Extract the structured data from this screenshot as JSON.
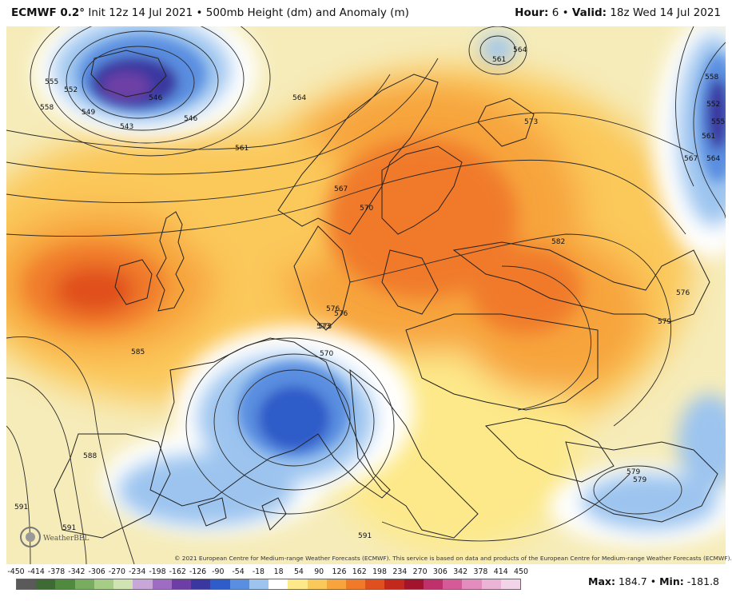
{
  "header": {
    "model": "ECMWF 0.2°",
    "init": "Init 12z 14 Jul 2021",
    "bullet": "•",
    "field": "500mb Height (dm) and Anomaly (m)",
    "hour_label": "Hour:",
    "hour_value": "6",
    "valid_label": "Valid:",
    "valid_value": "18z Wed 14 Jul 2021"
  },
  "colorbar": {
    "ticks": [
      "-450",
      "-414",
      "-378",
      "-342",
      "-306",
      "-270",
      "-234",
      "-198",
      "-162",
      "-126",
      "-90",
      "-54",
      "-18",
      "18",
      "54",
      "90",
      "126",
      "162",
      "198",
      "234",
      "270",
      "306",
      "342",
      "378",
      "414",
      "450"
    ],
    "colors": [
      "#5a5a5a",
      "#3e6b33",
      "#4f8a3f",
      "#78ad5f",
      "#a6cd86",
      "#cfe3b3",
      "#c9a6d8",
      "#9e6cc2",
      "#6d3fa6",
      "#3a38a0",
      "#2e5cc8",
      "#5a8ee0",
      "#9cc4ef",
      "#ffffff",
      "#fde98a",
      "#fbc85a",
      "#f7a43c",
      "#f07a2a",
      "#e0501f",
      "#c3281c",
      "#a3142c",
      "#c0306a",
      "#d65a98",
      "#e48cbd",
      "#ebb4d6",
      "#f2d4e8"
    ]
  },
  "stats": {
    "max_label": "Max:",
    "max_value": "184.7",
    "min_label": "Min:",
    "min_value": "-181.8"
  },
  "copyright": "© 2021 European Centre for Medium-range Weather Forecasts (ECMWF). This service is based on data and products of the European Centre for Medium-range Weather Forecasts (ECMWF).",
  "logo_text": "WeatherBELL",
  "contour_labels": [
    "555",
    "552",
    "549",
    "558",
    "546",
    "543",
    "546",
    "561",
    "564",
    "567",
    "570",
    "573",
    "573",
    "561",
    "564",
    "582",
    "576",
    "579",
    "576",
    "579",
    "585",
    "588",
    "591",
    "591",
    "591",
    "573",
    "570",
    "576",
    "558",
    "552",
    "555",
    "561",
    "564",
    "567",
    "579"
  ],
  "colors": {
    "warm_core": "#e85a23",
    "cold_core": "#2457c5",
    "neutral": "#f7edc0"
  }
}
